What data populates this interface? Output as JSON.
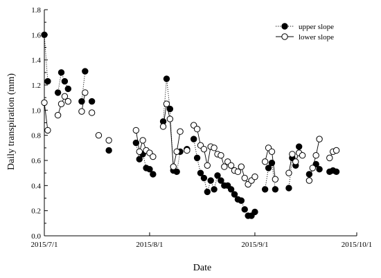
{
  "chart_data": {
    "type": "scatter",
    "title": "",
    "xlabel": "Date",
    "ylabel": "Daily transpiration (mm)",
    "xlim": [
      "2015-07-01",
      "2015-10-01"
    ],
    "ylim": [
      0.0,
      1.8
    ],
    "x_ticks": [
      "2015/7/1",
      "2015/8/1",
      "2015/9/1",
      "2015/10/1"
    ],
    "y_ticks": [
      "0.0",
      "0.2",
      "0.4",
      "0.6",
      "0.8",
      "1.0",
      "1.2",
      "1.4",
      "1.6",
      "1.8"
    ],
    "legend_position": "top-right",
    "series": [
      {
        "name": "upper slope",
        "marker": "filled-circle",
        "line": "dotted",
        "color": "#000000",
        "points": [
          [
            "2015-07-01",
            1.6
          ],
          [
            "2015-07-02",
            1.23
          ],
          [
            "2015-07-05",
            1.14
          ],
          [
            "2015-07-06",
            1.3
          ],
          [
            "2015-07-07",
            1.23
          ],
          [
            "2015-07-08",
            1.17
          ],
          [
            "2015-07-12",
            1.07
          ],
          [
            "2015-07-13",
            1.31
          ],
          [
            "2015-07-15",
            1.07
          ],
          [
            "2015-07-20",
            0.68
          ],
          [
            "2015-07-28",
            0.74
          ],
          [
            "2015-07-29",
            0.61
          ],
          [
            "2015-07-30",
            0.65
          ],
          [
            "2015-07-31",
            0.54
          ],
          [
            "2015-08-01",
            0.53
          ],
          [
            "2015-08-02",
            0.49
          ],
          [
            "2015-08-05",
            0.91
          ],
          [
            "2015-08-06",
            1.25
          ],
          [
            "2015-08-07",
            1.01
          ],
          [
            "2015-08-08",
            0.52
          ],
          [
            "2015-08-09",
            0.51
          ],
          [
            "2015-08-10",
            0.67
          ],
          [
            "2015-08-12",
            0.69
          ],
          [
            "2015-08-14",
            0.77
          ],
          [
            "2015-08-15",
            0.62
          ],
          [
            "2015-08-16",
            0.5
          ],
          [
            "2015-08-17",
            0.46
          ],
          [
            "2015-08-18",
            0.35
          ],
          [
            "2015-08-19",
            0.44
          ],
          [
            "2015-08-20",
            0.37
          ],
          [
            "2015-08-21",
            0.48
          ],
          [
            "2015-08-22",
            0.44
          ],
          [
            "2015-08-23",
            0.4
          ],
          [
            "2015-08-24",
            0.4
          ],
          [
            "2015-08-25",
            0.37
          ],
          [
            "2015-08-26",
            0.33
          ],
          [
            "2015-08-27",
            0.29
          ],
          [
            "2015-08-28",
            0.28
          ],
          [
            "2015-08-29",
            0.21
          ],
          [
            "2015-08-30",
            0.16
          ],
          [
            "2015-08-31",
            0.16
          ],
          [
            "2015-09-01",
            0.19
          ],
          [
            "2015-09-04",
            0.37
          ],
          [
            "2015-09-05",
            0.54
          ],
          [
            "2015-09-06",
            0.58
          ],
          [
            "2015-09-07",
            0.37
          ],
          [
            "2015-09-11",
            0.38
          ],
          [
            "2015-09-12",
            0.62
          ],
          [
            "2015-09-13",
            0.56
          ],
          [
            "2015-09-14",
            0.71
          ],
          [
            "2015-09-17",
            0.49
          ],
          [
            "2015-09-19",
            0.57
          ],
          [
            "2015-09-20",
            0.53
          ],
          [
            "2015-09-23",
            0.51
          ],
          [
            "2015-09-24",
            0.52
          ],
          [
            "2015-09-25",
            0.51
          ]
        ]
      },
      {
        "name": "lower slope",
        "marker": "open-circle",
        "line": "solid",
        "color": "#000000",
        "points": [
          [
            "2015-07-01",
            1.06
          ],
          [
            "2015-07-02",
            0.84
          ],
          [
            "2015-07-05",
            0.96
          ],
          [
            "2015-07-06",
            1.05
          ],
          [
            "2015-07-07",
            1.11
          ],
          [
            "2015-07-08",
            1.07
          ],
          [
            "2015-07-12",
            0.99
          ],
          [
            "2015-07-13",
            1.14
          ],
          [
            "2015-07-15",
            0.98
          ],
          [
            "2015-07-17",
            0.8
          ],
          [
            "2015-07-20",
            0.76
          ],
          [
            "2015-07-28",
            0.84
          ],
          [
            "2015-07-29",
            0.67
          ],
          [
            "2015-07-30",
            0.76
          ],
          [
            "2015-07-31",
            0.68
          ],
          [
            "2015-08-01",
            0.66
          ],
          [
            "2015-08-02",
            0.63
          ],
          [
            "2015-08-05",
            0.87
          ],
          [
            "2015-08-06",
            1.05
          ],
          [
            "2015-08-07",
            0.93
          ],
          [
            "2015-08-08",
            0.55
          ],
          [
            "2015-08-09",
            0.67
          ],
          [
            "2015-08-10",
            0.83
          ],
          [
            "2015-08-12",
            0.68
          ],
          [
            "2015-08-14",
            0.88
          ],
          [
            "2015-08-15",
            0.85
          ],
          [
            "2015-08-16",
            0.72
          ],
          [
            "2015-08-17",
            0.69
          ],
          [
            "2015-08-18",
            0.56
          ],
          [
            "2015-08-19",
            0.71
          ],
          [
            "2015-08-20",
            0.7
          ],
          [
            "2015-08-21",
            0.65
          ],
          [
            "2015-08-22",
            0.64
          ],
          [
            "2015-08-23",
            0.55
          ],
          [
            "2015-08-24",
            0.59
          ],
          [
            "2015-08-25",
            0.56
          ],
          [
            "2015-08-26",
            0.52
          ],
          [
            "2015-08-27",
            0.51
          ],
          [
            "2015-08-28",
            0.55
          ],
          [
            "2015-08-29",
            0.46
          ],
          [
            "2015-08-30",
            0.41
          ],
          [
            "2015-08-31",
            0.44
          ],
          [
            "2015-09-01",
            0.47
          ],
          [
            "2015-09-04",
            0.59
          ],
          [
            "2015-09-05",
            0.7
          ],
          [
            "2015-09-06",
            0.67
          ],
          [
            "2015-09-07",
            0.45
          ],
          [
            "2015-09-11",
            0.5
          ],
          [
            "2015-09-12",
            0.65
          ],
          [
            "2015-09-13",
            0.59
          ],
          [
            "2015-09-14",
            0.66
          ],
          [
            "2015-09-15",
            0.64
          ],
          [
            "2015-09-17",
            0.44
          ],
          [
            "2015-09-18",
            0.54
          ],
          [
            "2015-09-19",
            0.64
          ],
          [
            "2015-09-20",
            0.77
          ],
          [
            "2015-09-23",
            0.62
          ],
          [
            "2015-09-24",
            0.67
          ],
          [
            "2015-09-25",
            0.68
          ]
        ]
      }
    ]
  }
}
